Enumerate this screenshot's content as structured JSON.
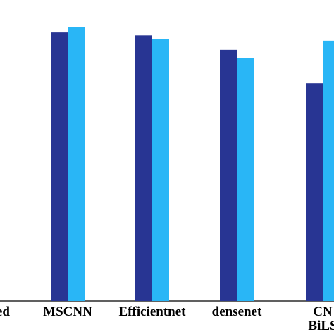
{
  "chart_data": {
    "type": "bar",
    "categories": [
      "Proposed",
      "MSCNN",
      "Efficientnet",
      "densenet",
      "CNN-BiLSTM"
    ],
    "category_labels": [
      [
        "ssed"
      ],
      [
        "MSCNN"
      ],
      [
        "Efficientnet"
      ],
      [
        "densenet"
      ],
      [
        "CN",
        "BiLS"
      ]
    ],
    "series": [
      {
        "values": [
          null,
          0.909,
          0.899,
          0.85,
          0.737
        ]
      },
      {
        "values": [
          null,
          0.926,
          0.887,
          0.823,
          0.881
        ]
      }
    ],
    "colors": [
      "#283593",
      "#29b6f6"
    ],
    "ylim": [
      0,
      1
    ],
    "grid": false,
    "legend": "none",
    "title": "",
    "xlabel": "",
    "ylabel": ""
  }
}
